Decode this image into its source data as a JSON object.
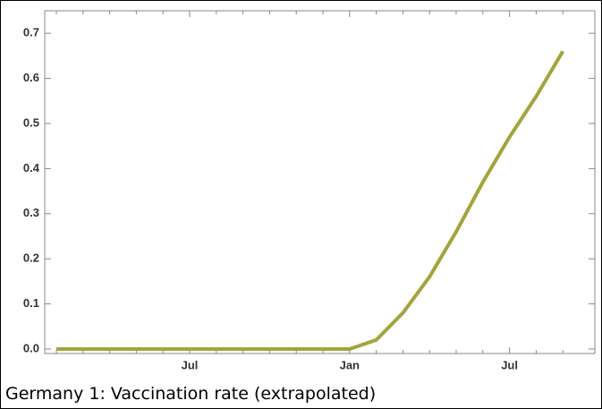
{
  "chart_data": {
    "type": "line",
    "caption": "Germany 1: Vaccination rate (extrapolated)",
    "categories": [
      null,
      null,
      null,
      null,
      null,
      "Jul",
      null,
      null,
      null,
      null,
      null,
      "Jan",
      null,
      null,
      null,
      null,
      null,
      "Jul",
      null,
      null
    ],
    "series": [
      {
        "name": "Vaccination rate",
        "color": "#a3a43c",
        "values": [
          0,
          0,
          0,
          0,
          0,
          0,
          0,
          0,
          0,
          0,
          0,
          0,
          0.02,
          0.08,
          0.16,
          0.26,
          0.37,
          0.47,
          0.56,
          0.66
        ]
      }
    ],
    "ylim": [
      -0.01,
      0.75
    ],
    "yticks": [
      {
        "value": 0,
        "label": "0.0"
      },
      0.1,
      0.2,
      0.3,
      0.4,
      0.5,
      0.6,
      0.7
    ]
  }
}
